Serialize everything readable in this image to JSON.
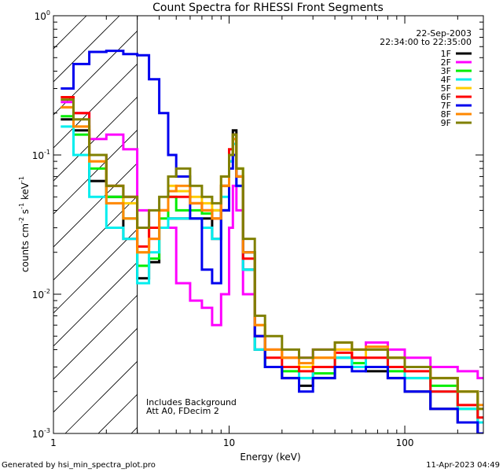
{
  "chart_data": {
    "type": "line",
    "title": "Count Spectra for RHESSI Front Segments",
    "xlabel": "Energy (keV)",
    "ylabel_parts": [
      "counts cm",
      "-2",
      " s",
      "-1",
      " keV",
      "-1"
    ],
    "xscale": "log",
    "yscale": "log",
    "xlim": [
      1,
      280
    ],
    "ylim": [
      0.001,
      1
    ],
    "x_tick_labels": [
      {
        "value": 1,
        "label": "1"
      },
      {
        "value": 10,
        "label": "10"
      },
      {
        "value": 100,
        "label": "100"
      }
    ],
    "y_tick_labels": [
      {
        "value": 1,
        "mant": "10",
        "exp": "0"
      },
      {
        "value": 0.1,
        "mant": "10",
        "exp": "-1"
      },
      {
        "value": 0.01,
        "mant": "10",
        "exp": "-2"
      },
      {
        "value": 0.001,
        "mant": "10",
        "exp": "-3"
      }
    ],
    "hatched_region_max_keV": 3,
    "date": "22-Sep-2003",
    "time_range": "22:34:00 to 22:35:00",
    "annotations": [
      "Includes Background",
      "Att A0, FDecim 2"
    ],
    "legend_position": "top-right",
    "series": [
      {
        "name": "1F",
        "color": "#000000",
        "points": [
          [
            1.1,
            0.18
          ],
          [
            1.3,
            0.15
          ],
          [
            1.6,
            0.065
          ],
          [
            2.0,
            0.05
          ],
          [
            2.5,
            0.025
          ],
          [
            3.0,
            0.013
          ],
          [
            3.5,
            0.017
          ],
          [
            4.0,
            0.03
          ],
          [
            4.5,
            0.035
          ],
          [
            5.0,
            0.035
          ],
          [
            6.0,
            0.035
          ],
          [
            7.0,
            0.035
          ],
          [
            8.0,
            0.025
          ],
          [
            9.0,
            0.04
          ],
          [
            10.0,
            0.09
          ],
          [
            10.5,
            0.15
          ],
          [
            11.0,
            0.07
          ],
          [
            12.0,
            0.015
          ],
          [
            14.0,
            0.004
          ],
          [
            16.0,
            0.003
          ],
          [
            20.0,
            0.0025
          ],
          [
            25.0,
            0.0022
          ],
          [
            30.0,
            0.0025
          ],
          [
            40.0,
            0.003
          ],
          [
            50.0,
            0.003
          ],
          [
            60.0,
            0.0028
          ],
          [
            80.0,
            0.0025
          ],
          [
            100.0,
            0.002
          ],
          [
            140.0,
            0.0015
          ],
          [
            200.0,
            0.0012
          ],
          [
            260.0,
            0.001
          ]
        ]
      },
      {
        "name": "2F",
        "color": "#ff00ff",
        "points": [
          [
            1.1,
            0.24
          ],
          [
            1.3,
            0.2
          ],
          [
            1.6,
            0.13
          ],
          [
            2.0,
            0.14
          ],
          [
            2.5,
            0.11
          ],
          [
            3.0,
            0.04
          ],
          [
            3.5,
            0.025
          ],
          [
            4.0,
            0.03
          ],
          [
            5.0,
            0.012
          ],
          [
            6.0,
            0.009
          ],
          [
            7.0,
            0.008
          ],
          [
            8.0,
            0.006
          ],
          [
            9.0,
            0.01
          ],
          [
            10.0,
            0.03
          ],
          [
            10.5,
            0.06
          ],
          [
            11.0,
            0.04
          ],
          [
            12.0,
            0.01
          ],
          [
            14.0,
            0.005
          ],
          [
            16.0,
            0.004
          ],
          [
            20.0,
            0.0035
          ],
          [
            25.0,
            0.0035
          ],
          [
            30.0,
            0.004
          ],
          [
            40.0,
            0.004
          ],
          [
            50.0,
            0.0035
          ],
          [
            60.0,
            0.0045
          ],
          [
            80.0,
            0.004
          ],
          [
            100.0,
            0.0035
          ],
          [
            140.0,
            0.003
          ],
          [
            200.0,
            0.0028
          ],
          [
            260.0,
            0.0025
          ]
        ]
      },
      {
        "name": "3F",
        "color": "#00ee00",
        "points": [
          [
            1.1,
            0.19
          ],
          [
            1.3,
            0.14
          ],
          [
            1.6,
            0.08
          ],
          [
            2.0,
            0.05
          ],
          [
            2.5,
            0.035
          ],
          [
            3.0,
            0.016
          ],
          [
            3.5,
            0.018
          ],
          [
            4.0,
            0.035
          ],
          [
            4.5,
            0.05
          ],
          [
            5.0,
            0.04
          ],
          [
            6.0,
            0.04
          ],
          [
            7.0,
            0.038
          ],
          [
            8.0,
            0.04
          ],
          [
            9.0,
            0.06
          ],
          [
            10.0,
            0.1
          ],
          [
            10.5,
            0.14
          ],
          [
            11.0,
            0.08
          ],
          [
            12.0,
            0.02
          ],
          [
            14.0,
            0.005
          ],
          [
            16.0,
            0.003
          ],
          [
            20.0,
            0.0028
          ],
          [
            25.0,
            0.0025
          ],
          [
            30.0,
            0.0027
          ],
          [
            40.0,
            0.0035
          ],
          [
            50.0,
            0.0032
          ],
          [
            60.0,
            0.003
          ],
          [
            80.0,
            0.0028
          ],
          [
            100.0,
            0.0025
          ],
          [
            140.0,
            0.0022
          ],
          [
            200.0,
            0.0015
          ],
          [
            260.0,
            0.0012
          ]
        ]
      },
      {
        "name": "4F",
        "color": "#00eeee",
        "points": [
          [
            1.1,
            0.16
          ],
          [
            1.3,
            0.1
          ],
          [
            1.6,
            0.05
          ],
          [
            2.0,
            0.03
          ],
          [
            2.5,
            0.025
          ],
          [
            3.0,
            0.012
          ],
          [
            3.5,
            0.02
          ],
          [
            4.0,
            0.03
          ],
          [
            4.5,
            0.035
          ],
          [
            5.0,
            0.035
          ],
          [
            6.0,
            0.035
          ],
          [
            7.0,
            0.03
          ],
          [
            8.0,
            0.025
          ],
          [
            9.0,
            0.05
          ],
          [
            10.0,
            0.09
          ],
          [
            10.5,
            0.12
          ],
          [
            11.0,
            0.06
          ],
          [
            12.0,
            0.015
          ],
          [
            14.0,
            0.004
          ],
          [
            16.0,
            0.003
          ],
          [
            20.0,
            0.003
          ],
          [
            25.0,
            0.0025
          ],
          [
            30.0,
            0.003
          ],
          [
            40.0,
            0.0035
          ],
          [
            50.0,
            0.003
          ],
          [
            60.0,
            0.004
          ],
          [
            80.0,
            0.003
          ],
          [
            100.0,
            0.0025
          ],
          [
            140.0,
            0.002
          ],
          [
            200.0,
            0.0015
          ],
          [
            260.0,
            0.0012
          ]
        ]
      },
      {
        "name": "5F",
        "color": "#ffcc00",
        "points": [
          [
            1.1,
            0.22
          ],
          [
            1.3,
            0.16
          ],
          [
            1.6,
            0.09
          ],
          [
            2.0,
            0.06
          ],
          [
            2.5,
            0.045
          ],
          [
            3.0,
            0.02
          ],
          [
            3.5,
            0.03
          ],
          [
            4.0,
            0.04
          ],
          [
            4.5,
            0.06
          ],
          [
            5.0,
            0.055
          ],
          [
            6.0,
            0.05
          ],
          [
            7.0,
            0.045
          ],
          [
            8.0,
            0.04
          ],
          [
            9.0,
            0.07
          ],
          [
            10.0,
            0.1
          ],
          [
            10.5,
            0.13
          ],
          [
            11.0,
            0.08
          ],
          [
            12.0,
            0.02
          ],
          [
            14.0,
            0.006
          ],
          [
            16.0,
            0.004
          ],
          [
            20.0,
            0.0035
          ],
          [
            25.0,
            0.003
          ],
          [
            30.0,
            0.0035
          ],
          [
            40.0,
            0.004
          ],
          [
            50.0,
            0.0035
          ],
          [
            60.0,
            0.004
          ],
          [
            80.0,
            0.0035
          ],
          [
            100.0,
            0.003
          ],
          [
            140.0,
            0.0025
          ],
          [
            200.0,
            0.002
          ],
          [
            260.0,
            0.0015
          ]
        ]
      },
      {
        "name": "6F",
        "color": "#ff0000",
        "points": [
          [
            1.1,
            0.26
          ],
          [
            1.3,
            0.2
          ],
          [
            1.6,
            0.1
          ],
          [
            2.0,
            0.06
          ],
          [
            2.5,
            0.05
          ],
          [
            3.0,
            0.022
          ],
          [
            3.5,
            0.03
          ],
          [
            4.0,
            0.04
          ],
          [
            4.5,
            0.05
          ],
          [
            5.0,
            0.05
          ],
          [
            6.0,
            0.045
          ],
          [
            7.0,
            0.04
          ],
          [
            8.0,
            0.035
          ],
          [
            9.0,
            0.06
          ],
          [
            10.0,
            0.11
          ],
          [
            10.5,
            0.14
          ],
          [
            11.0,
            0.07
          ],
          [
            12.0,
            0.018
          ],
          [
            14.0,
            0.005
          ],
          [
            16.0,
            0.0035
          ],
          [
            20.0,
            0.003
          ],
          [
            25.0,
            0.0028
          ],
          [
            30.0,
            0.003
          ],
          [
            40.0,
            0.0038
          ],
          [
            50.0,
            0.0035
          ],
          [
            60.0,
            0.0035
          ],
          [
            80.0,
            0.003
          ],
          [
            100.0,
            0.0028
          ],
          [
            140.0,
            0.002
          ],
          [
            200.0,
            0.0016
          ],
          [
            260.0,
            0.0013
          ]
        ]
      },
      {
        "name": "7F",
        "color": "#0000ee",
        "points": [
          [
            1.1,
            0.3
          ],
          [
            1.3,
            0.45
          ],
          [
            1.6,
            0.55
          ],
          [
            2.0,
            0.56
          ],
          [
            2.5,
            0.53
          ],
          [
            3.0,
            0.52
          ],
          [
            3.5,
            0.35
          ],
          [
            4.0,
            0.2
          ],
          [
            4.5,
            0.1
          ],
          [
            5.0,
            0.07
          ],
          [
            6.0,
            0.035
          ],
          [
            7.0,
            0.015
          ],
          [
            8.0,
            0.012
          ],
          [
            9.0,
            0.04
          ],
          [
            10.0,
            0.08
          ],
          [
            10.5,
            0.1
          ],
          [
            11.0,
            0.06
          ],
          [
            12.0,
            0.02
          ],
          [
            14.0,
            0.005
          ],
          [
            16.0,
            0.003
          ],
          [
            20.0,
            0.0025
          ],
          [
            25.0,
            0.002
          ],
          [
            30.0,
            0.0025
          ],
          [
            40.0,
            0.003
          ],
          [
            50.0,
            0.0028
          ],
          [
            60.0,
            0.003
          ],
          [
            80.0,
            0.0025
          ],
          [
            100.0,
            0.002
          ],
          [
            140.0,
            0.0015
          ],
          [
            200.0,
            0.0012
          ],
          [
            260.0,
            0.001
          ]
        ]
      },
      {
        "name": "8F",
        "color": "#ff8800",
        "points": [
          [
            1.1,
            0.22
          ],
          [
            1.3,
            0.16
          ],
          [
            1.6,
            0.09
          ],
          [
            2.0,
            0.045
          ],
          [
            2.5,
            0.035
          ],
          [
            3.0,
            0.02
          ],
          [
            3.5,
            0.025
          ],
          [
            4.0,
            0.04
          ],
          [
            4.5,
            0.055
          ],
          [
            5.0,
            0.06
          ],
          [
            6.0,
            0.045
          ],
          [
            7.0,
            0.04
          ],
          [
            8.0,
            0.035
          ],
          [
            9.0,
            0.06
          ],
          [
            10.0,
            0.1
          ],
          [
            10.5,
            0.13
          ],
          [
            11.0,
            0.07
          ],
          [
            12.0,
            0.02
          ],
          [
            14.0,
            0.006
          ],
          [
            16.0,
            0.004
          ],
          [
            20.0,
            0.0035
          ],
          [
            25.0,
            0.0032
          ],
          [
            30.0,
            0.0035
          ],
          [
            40.0,
            0.0045
          ],
          [
            50.0,
            0.004
          ],
          [
            60.0,
            0.0042
          ],
          [
            80.0,
            0.0035
          ],
          [
            100.0,
            0.003
          ],
          [
            140.0,
            0.0025
          ],
          [
            200.0,
            0.002
          ],
          [
            260.0,
            0.0016
          ]
        ]
      },
      {
        "name": "9F",
        "color": "#808000",
        "points": [
          [
            1.1,
            0.25
          ],
          [
            1.3,
            0.18
          ],
          [
            1.6,
            0.1
          ],
          [
            2.0,
            0.06
          ],
          [
            2.5,
            0.05
          ],
          [
            3.0,
            0.03
          ],
          [
            3.5,
            0.04
          ],
          [
            4.0,
            0.05
          ],
          [
            4.5,
            0.07
          ],
          [
            5.0,
            0.08
          ],
          [
            6.0,
            0.06
          ],
          [
            7.0,
            0.05
          ],
          [
            8.0,
            0.045
          ],
          [
            9.0,
            0.07
          ],
          [
            10.0,
            0.1
          ],
          [
            10.5,
            0.14
          ],
          [
            11.0,
            0.08
          ],
          [
            12.0,
            0.025
          ],
          [
            14.0,
            0.007
          ],
          [
            16.0,
            0.005
          ],
          [
            20.0,
            0.004
          ],
          [
            25.0,
            0.0035
          ],
          [
            30.0,
            0.004
          ],
          [
            40.0,
            0.0045
          ],
          [
            50.0,
            0.004
          ],
          [
            60.0,
            0.004
          ],
          [
            80.0,
            0.0035
          ],
          [
            100.0,
            0.003
          ],
          [
            140.0,
            0.0025
          ],
          [
            200.0,
            0.002
          ],
          [
            260.0,
            0.0015
          ]
        ]
      }
    ]
  },
  "footer": {
    "generated_by": "Generated by hsi_min_spectra_plot.pro",
    "timestamp": "11-Apr-2023 04:49"
  }
}
